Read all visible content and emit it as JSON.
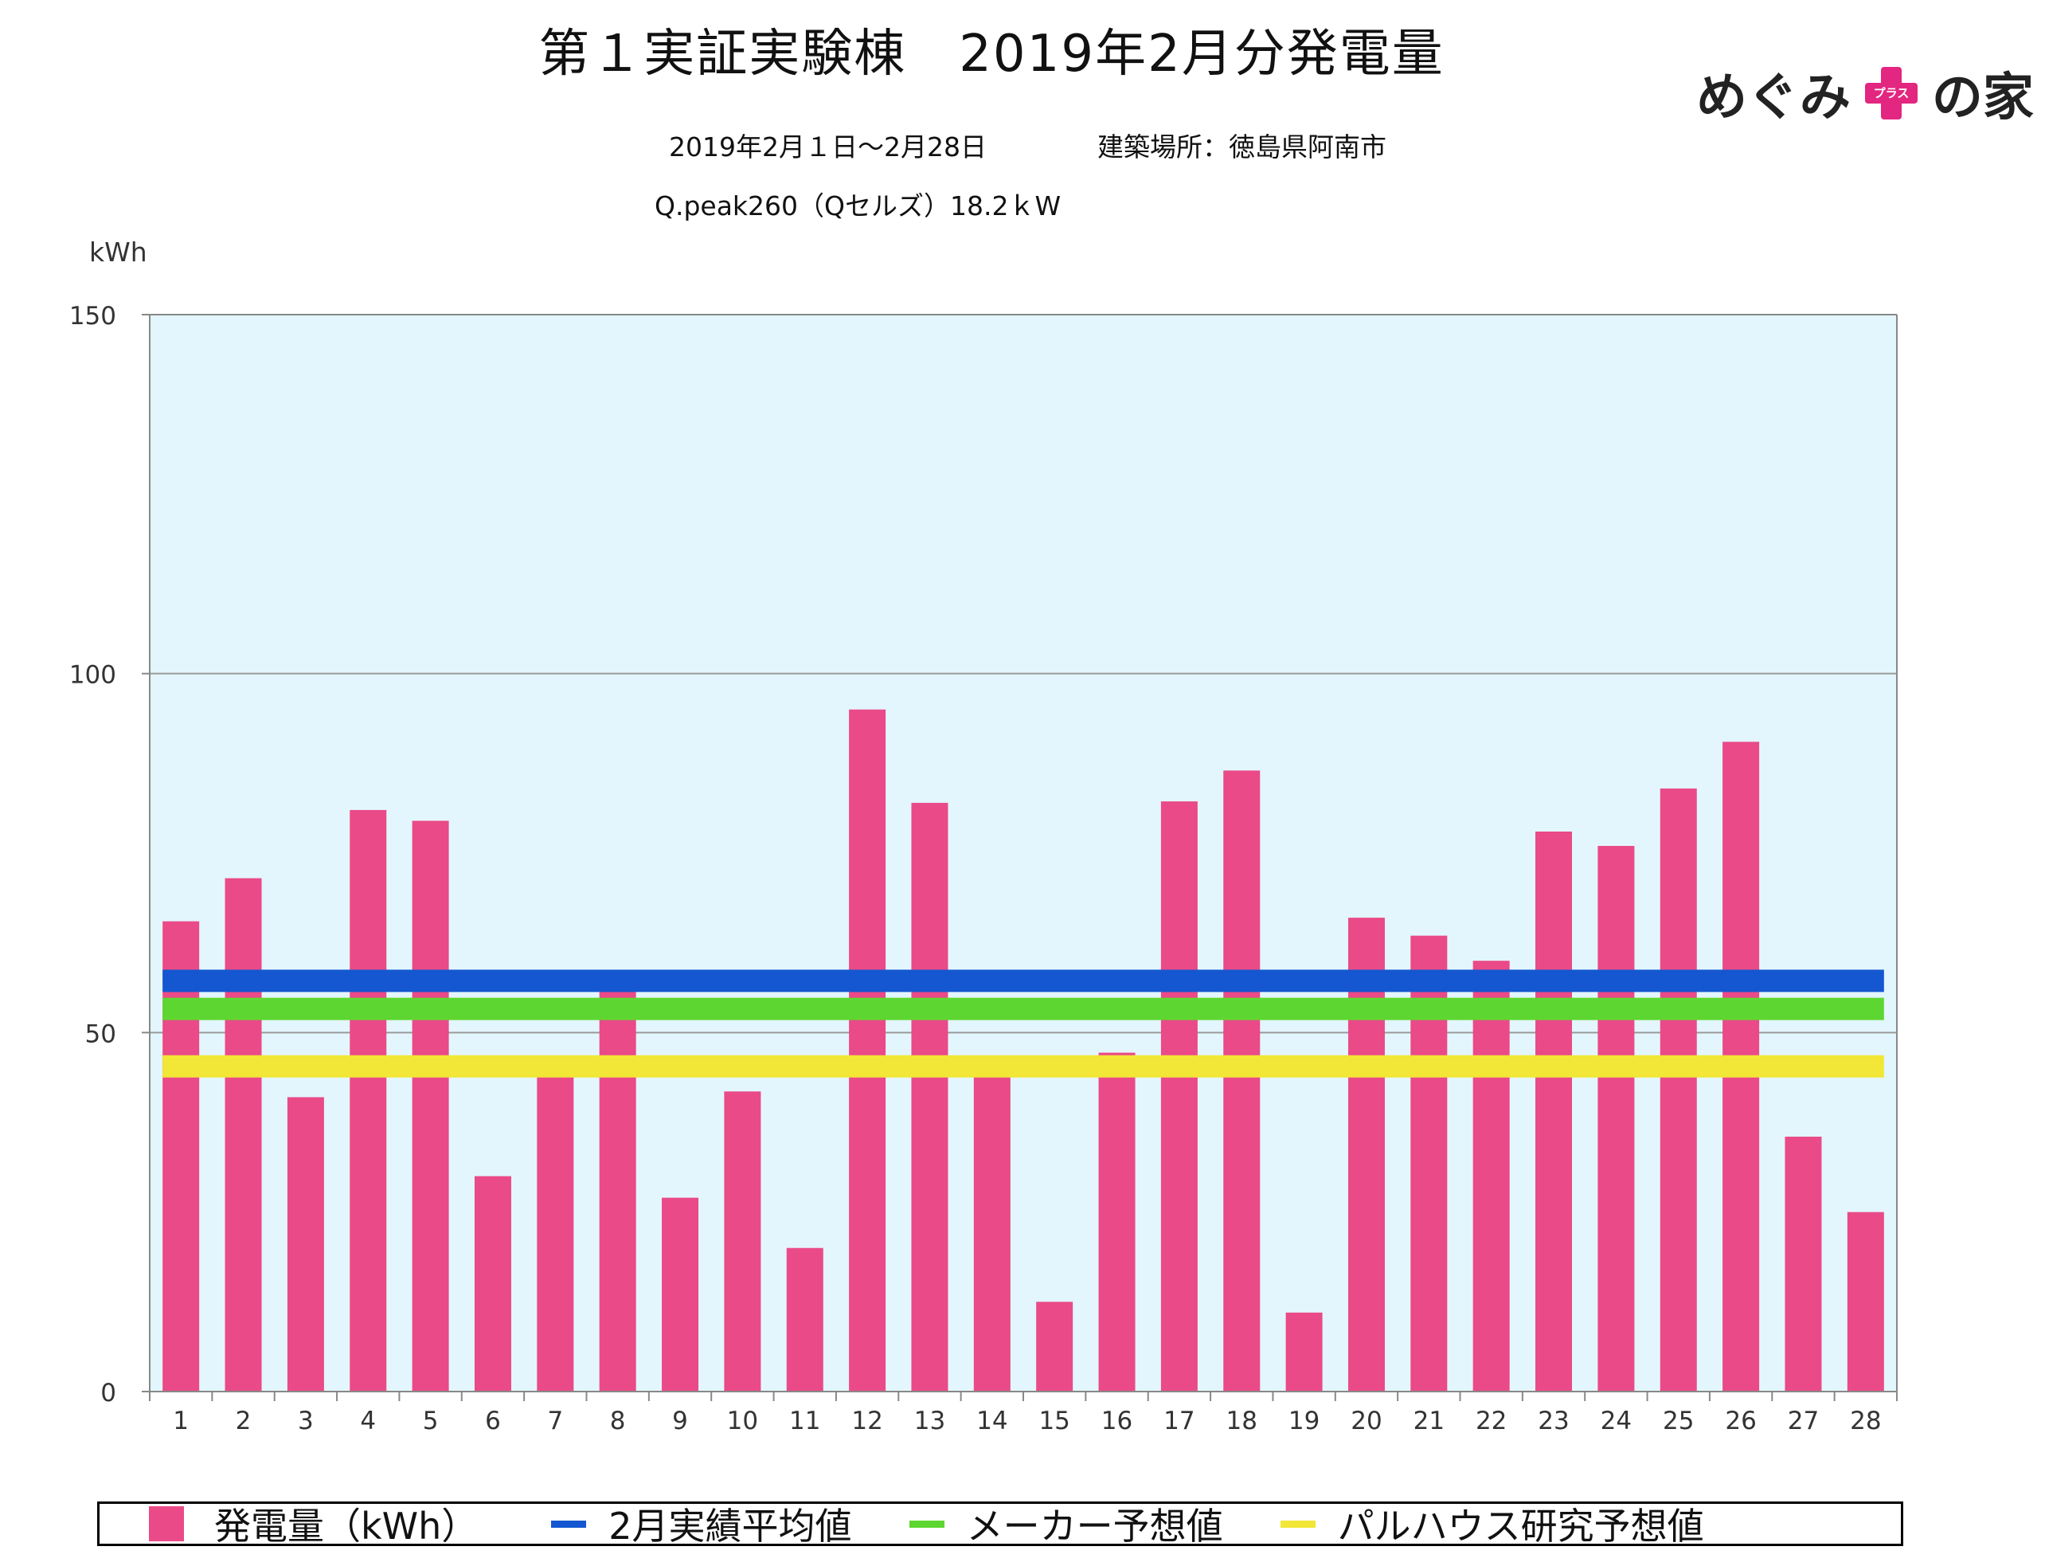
{
  "header": {
    "title": "第１実証実験棟　2019年2月分発電量",
    "period": "2019年2月１日〜2月28日",
    "location": "建築場所：徳島県阿南市",
    "panel": "Q.peak260（Qセルズ）18.2ｋW"
  },
  "logo": {
    "left": "めぐみ",
    "plus_text": "プラス",
    "right": "の家",
    "accent": "#e3267f"
  },
  "chart_data": {
    "type": "bar",
    "ylabel": "kWh",
    "ylim": [
      0,
      150
    ],
    "yticks": [
      0,
      50,
      100,
      150
    ],
    "grid": true,
    "categories": [
      "1",
      "2",
      "3",
      "4",
      "5",
      "6",
      "7",
      "8",
      "9",
      "10",
      "11",
      "12",
      "13",
      "14",
      "15",
      "16",
      "17",
      "18",
      "19",
      "20",
      "21",
      "22",
      "23",
      "24",
      "25",
      "26",
      "27",
      "28"
    ],
    "series": [
      {
        "name": "発電量（kWh）",
        "color": "#ea4a87",
        "values": [
          65.5,
          71.5,
          41,
          81,
          79.5,
          30,
          46,
          56,
          27,
          41.8,
          20,
          95,
          82,
          44,
          12.5,
          47.2,
          82.2,
          86.5,
          11,
          66,
          63.5,
          60,
          78,
          76,
          84,
          90.5,
          35.5,
          25
        ]
      }
    ],
    "reference_lines": [
      {
        "name": "2月実績平均値",
        "value": 57.2,
        "color": "#1457d0"
      },
      {
        "name": "メーカー予想値",
        "value": 53.3,
        "color": "#5ed631"
      },
      {
        "name": "パルハウス研究予想値",
        "value": 45.3,
        "color": "#f2e636"
      }
    ],
    "plot_background": "#e3f6fd",
    "legend_position": "bottom"
  }
}
